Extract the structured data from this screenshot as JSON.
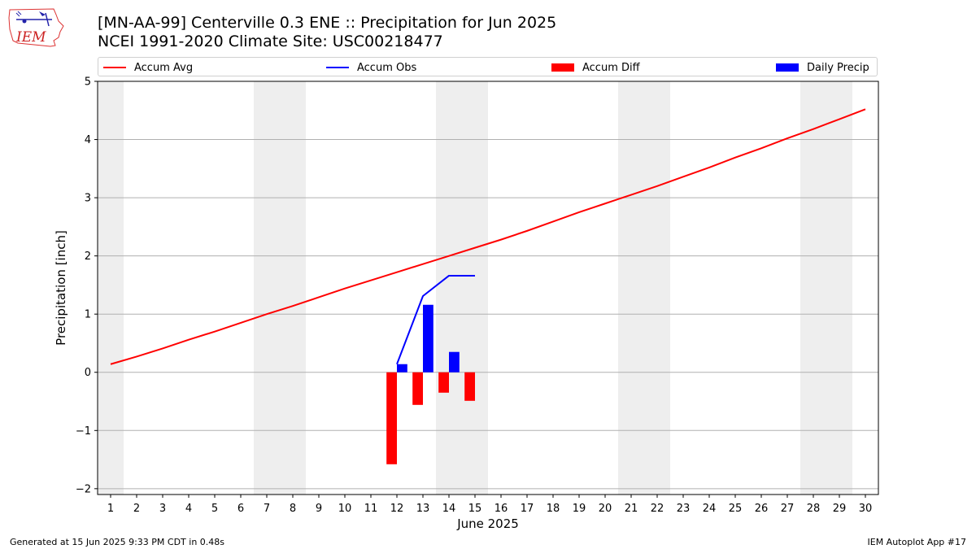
{
  "header": {
    "title_line1": "[MN-AA-99] Centerville 0.3 ENE :: Precipitation for Jun 2025",
    "title_line2": "NCEI 1991-2020 Climate Site: USC00218477",
    "logo_text": "IEM"
  },
  "footer": {
    "generated": "Generated at 15 Jun 2025 9:33 PM CDT in 0.48s",
    "app": "IEM Autoplot App #17"
  },
  "colors": {
    "accum_avg": "#ff0000",
    "accum_obs": "#0000ff",
    "accum_diff": "#ff0000",
    "daily_precip": "#0000ff",
    "weekend_band": "#eeeeee",
    "grid": "#b0b0b0"
  },
  "chart_data": {
    "type": "line",
    "xlabel": "June 2025",
    "ylabel": "Precipitation [inch]",
    "xlim": [
      0.5,
      30.5
    ],
    "ylim": [
      -2.1,
      5.0
    ],
    "y_ticks": [
      -2,
      -1,
      0,
      1,
      2,
      3,
      4,
      5
    ],
    "y_tick_labels": [
      "−2",
      "−1",
      "0",
      "1",
      "2",
      "3",
      "4",
      "5"
    ],
    "x_ticks": [
      1,
      2,
      3,
      4,
      5,
      6,
      7,
      8,
      9,
      10,
      11,
      12,
      13,
      14,
      15,
      16,
      17,
      18,
      19,
      20,
      21,
      22,
      23,
      24,
      25,
      26,
      27,
      28,
      29,
      30
    ],
    "grid": "y",
    "weekend_days": [
      1,
      7,
      8,
      14,
      15,
      21,
      22,
      28,
      29
    ],
    "legend": {
      "placement": "top",
      "entries": [
        {
          "label": "Accum Avg",
          "kind": "line",
          "color": "#ff0000"
        },
        {
          "label": "Accum Obs",
          "kind": "line",
          "color": "#0000ff"
        },
        {
          "label": "Accum Diff",
          "kind": "bar",
          "color": "#ff0000"
        },
        {
          "label": "Daily Precip",
          "kind": "bar",
          "color": "#0000ff"
        }
      ]
    },
    "series": [
      {
        "name": "Accum Avg",
        "type": "line",
        "x": [
          1,
          2,
          3,
          4,
          5,
          6,
          7,
          8,
          9,
          10,
          11,
          12,
          13,
          14,
          15,
          16,
          17,
          18,
          19,
          20,
          21,
          22,
          23,
          24,
          25,
          26,
          27,
          28,
          29,
          30
        ],
        "values": [
          0.14,
          0.27,
          0.41,
          0.56,
          0.7,
          0.85,
          1.0,
          1.14,
          1.29,
          1.44,
          1.58,
          1.72,
          1.86,
          2.0,
          2.14,
          2.28,
          2.43,
          2.59,
          2.75,
          2.9,
          3.05,
          3.2,
          3.36,
          3.52,
          3.69,
          3.85,
          4.02,
          4.18,
          4.35,
          4.52
        ]
      },
      {
        "name": "Accum Obs",
        "type": "line",
        "x": [
          12,
          13,
          14,
          15
        ],
        "values": [
          0.14,
          1.31,
          1.66,
          1.66
        ]
      },
      {
        "name": "Accum Diff",
        "type": "bar",
        "x": [
          12,
          13,
          14,
          15
        ],
        "values": [
          -1.58,
          -0.56,
          -0.35,
          -0.49
        ]
      },
      {
        "name": "Daily Precip",
        "type": "bar",
        "x": [
          12,
          13,
          14,
          15
        ],
        "values": [
          0.14,
          1.16,
          0.35,
          0.0
        ]
      }
    ]
  }
}
